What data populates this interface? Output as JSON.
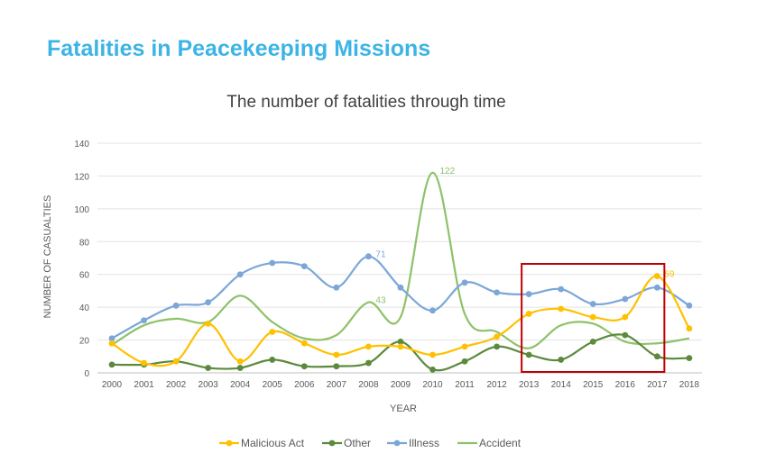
{
  "page": {
    "title": "Fatalities in Peacekeeping Missions"
  },
  "chart_data": {
    "type": "line",
    "title": "The number of fatalities through time",
    "xlabel": "YEAR",
    "ylabel": "NUMBER OF CASUALTIES",
    "ylim": [
      0,
      140
    ],
    "yticks": [
      0,
      20,
      40,
      60,
      80,
      100,
      120,
      140
    ],
    "grid": true,
    "legend_position": "bottom",
    "categories": [
      "2000",
      "2001",
      "2002",
      "2003",
      "2004",
      "2005",
      "2006",
      "2007",
      "2008",
      "2009",
      "2010",
      "2011",
      "2012",
      "2013",
      "2014",
      "2015",
      "2016",
      "2017",
      "2018"
    ],
    "series": [
      {
        "name": "Malicious Act",
        "color": "#ffc000",
        "values": [
          18,
          6,
          7,
          30,
          7,
          25,
          18,
          11,
          16,
          16,
          11,
          16,
          22,
          36,
          39,
          34,
          34,
          59,
          27
        ],
        "labels": [
          {
            "year": "2017",
            "text": "59"
          }
        ]
      },
      {
        "name": "Other",
        "color": "#5b8a3c",
        "values": [
          5,
          5,
          7,
          3,
          3,
          8,
          4,
          4,
          6,
          19,
          2,
          7,
          16,
          11,
          8,
          19,
          23,
          10,
          9
        ],
        "labels": []
      },
      {
        "name": "Illness",
        "color": "#7ba7d8",
        "values": [
          21,
          32,
          41,
          43,
          60,
          67,
          65,
          52,
          71,
          52,
          38,
          55,
          49,
          48,
          51,
          42,
          45,
          52,
          41
        ],
        "labels": [
          {
            "year": "2008",
            "text": "71"
          }
        ]
      },
      {
        "name": "Accident",
        "color": "#8fc16a",
        "values": [
          17,
          29,
          33,
          31,
          47,
          31,
          21,
          23,
          43,
          34,
          122,
          36,
          25,
          15,
          29,
          30,
          19,
          18,
          21
        ],
        "labels": [
          {
            "year": "2008",
            "text": "43"
          },
          {
            "year": "2010",
            "text": "122"
          }
        ]
      }
    ],
    "highlight": {
      "from": "2013",
      "to": "2017",
      "color": "#c00000"
    }
  }
}
